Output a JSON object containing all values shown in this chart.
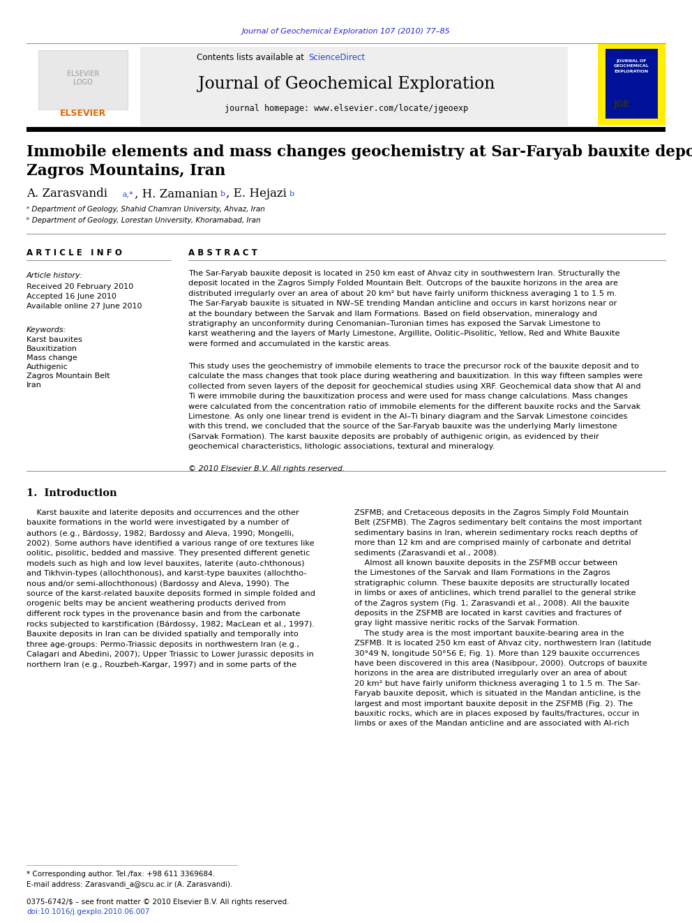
{
  "background_color": "#ffffff",
  "journal_citation": "Journal of Geochemical Exploration 107 (2010) 77–85",
  "journal_citation_color": "#2222cc",
  "journal_name": "Journal of Geochemical Exploration",
  "homepage_text": "journal homepage: www.elsevier.com/locate/jgeoexp",
  "contents_text": "Contents lists available at ",
  "sciencedirect_text": "ScienceDirect",
  "sciencedirect_color": "#2244cc",
  "elsevier_text": "ELSEVIER",
  "paper_title_line1": "Immobile elements and mass changes geochemistry at Sar-Faryab bauxite deposit,",
  "paper_title_line2": "Zagros Mountains, Iran",
  "affil_a": "ᵃ Department of Geology, Shahid Chamran University, Ahvaz, Iran",
  "affil_b": "ᵇ Department of Geology, Lorestan University, Khoramabad, Iran",
  "article_info_header": "A R T I C L E   I N F O",
  "article_history_label": "Article history:",
  "received": "Received 20 February 2010",
  "accepted": "Accepted 16 June 2010",
  "available": "Available online 27 June 2010",
  "keywords_label": "Keywords:",
  "keywords": [
    "Karst bauxites",
    "Bauxitization",
    "Mass change",
    "Authigenic",
    "Zagros Mountain Belt",
    "Iran"
  ],
  "abstract_header": "A B S T R A C T",
  "copyright": "© 2010 Elsevier B.V. All rights reserved.",
  "intro_header": "1.  Introduction",
  "footnote_corresponding": "* Corresponding author. Tel./fax: +98 611 3369684.",
  "footnote_email": "E-mail address: Zarasvandi_a@scu.ac.ir (A. Zarasvandi).",
  "footer_issn": "0375-6742/$ – see front matter © 2010 Elsevier B.V. All rights reserved.",
  "footer_doi": "doi:10.1016/j.gexplo.2010.06.007"
}
